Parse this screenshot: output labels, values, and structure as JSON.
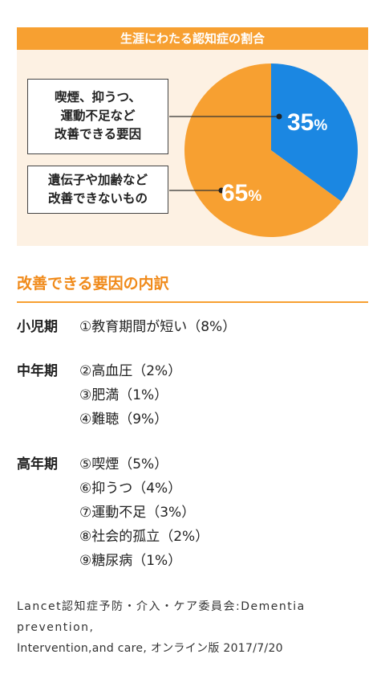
{
  "chart_data": {
    "type": "pie",
    "title": "生涯にわたる認知症の割合",
    "slices": [
      {
        "label": "喫煙、抑うつ、運動不足など改善できる要因",
        "value": 35,
        "display": "35%",
        "color": "#1b87e2"
      },
      {
        "label": "遺伝子や加齢など改善できないもの",
        "value": 65,
        "display": "65%",
        "color": "#f7a031"
      }
    ],
    "callouts": [
      [
        "喫煙、抑うつ、",
        "運動不足など",
        "改善できる要因"
      ],
      [
        "遺伝子や加齢など",
        "改善できないもの"
      ]
    ],
    "background_color": "#fdf1e3",
    "title_bar_color": "#f7a031"
  },
  "breakdown": {
    "title": "改善できる要因の内訳",
    "groups": [
      {
        "period": "小児期",
        "items": [
          "①教育期間が短い（8%）"
        ]
      },
      {
        "period": "中年期",
        "items": [
          "②高血圧（2%）",
          "③肥満（1%）",
          "④難聴（9%）"
        ]
      },
      {
        "period": "高年期",
        "items": [
          "⑤喫煙（5%）",
          "⑥抑うつ（4%）",
          "⑦運動不足（3%）",
          "⑧社会的孤立（2%）",
          "⑨糖尿病（1%）"
        ]
      }
    ]
  },
  "source": [
    "Lancet認知症予防・介入・ケア委員会:Dementia",
    "prevention,",
    "Intervention,and care, オンライン版 2017/7/20"
  ]
}
